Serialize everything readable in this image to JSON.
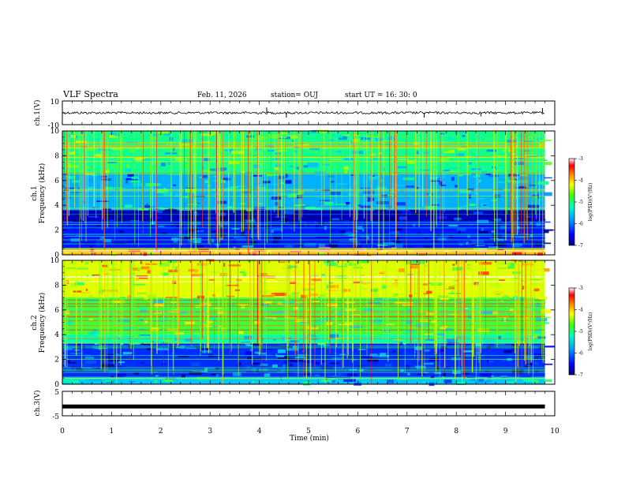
{
  "header": {
    "title": "VLF Spectra",
    "date": "Feb. 11, 2026",
    "station": "station= OUJ",
    "start": "start  UT  =   16: 30: 0"
  },
  "colors": {
    "spectrogram_scale": [
      "#000080",
      "#0000ff",
      "#0080ff",
      "#00c8ff",
      "#00ff80",
      "#aaff00",
      "#ffff00",
      "#ff6000",
      "#ff0000",
      "#ffffff"
    ],
    "trace": "#000000",
    "frame": "#000000"
  },
  "chart_data": [
    {
      "type": "line",
      "panel": "ch1-waveform",
      "ylabel": "ch.1(V)",
      "yticklabels": [
        "10",
        "-10"
      ],
      "ylim": [
        -10,
        10
      ],
      "xlim": [
        0,
        10
      ],
      "baseline": 0,
      "spikes": [
        {
          "x": 4.15,
          "y": 4.5
        },
        {
          "x": 4.55,
          "y": -4
        },
        {
          "x": 7.35,
          "y": -4
        },
        {
          "x": 8.5,
          "y": -3
        },
        {
          "x": 9.75,
          "y": 4
        }
      ]
    },
    {
      "type": "heatmap",
      "panel": "ch1-spectrogram",
      "ylabel": "ch.1\nFrequency  (kHz)",
      "yticks": [
        0,
        2,
        4,
        6,
        8,
        10
      ],
      "ylim": [
        0,
        10
      ],
      "xlim": [
        0,
        9.8
      ],
      "colorbar": {
        "label": "log(PSD)(V²/Hz)",
        "ticks": [
          -3,
          -4,
          -5,
          -6,
          -7
        ],
        "range": [
          -7,
          -3
        ]
      },
      "bands": [
        {
          "f": [
            0,
            0.5
          ],
          "logpsd": -3.8
        },
        {
          "f": [
            0.5,
            2.7
          ],
          "logpsd": -6.4
        },
        {
          "f": [
            2.7,
            3.6
          ],
          "logpsd": -6.8
        },
        {
          "f": [
            3.6,
            6.5
          ],
          "logpsd": -5.7
        },
        {
          "f": [
            6.5,
            10
          ],
          "logpsd": -5.1
        }
      ]
    },
    {
      "type": "heatmap",
      "panel": "ch2-spectrogram",
      "ylabel": "ch.2\nFrequency  (kHz)",
      "yticks": [
        0,
        2,
        4,
        6,
        8,
        10
      ],
      "ylim": [
        0,
        10
      ],
      "xlim": [
        0,
        9.8
      ],
      "colorbar": {
        "label": "log(PSD)(V²/Hz)",
        "ticks": [
          -3,
          -4,
          -5,
          -6,
          -7
        ],
        "range": [
          -7,
          -3
        ]
      },
      "bands": [
        {
          "f": [
            0,
            0.6
          ],
          "logpsd": -5.6
        },
        {
          "f": [
            0.6,
            3.3
          ],
          "logpsd": -6.3
        },
        {
          "f": [
            3.3,
            4.0
          ],
          "logpsd": -5.2
        },
        {
          "f": [
            4.0,
            7.0
          ],
          "logpsd": -4.8
        },
        {
          "f": [
            7.0,
            10
          ],
          "logpsd": -4.2
        }
      ]
    },
    {
      "type": "line",
      "panel": "ch3-waveform",
      "ylabel": "ch.3(V)",
      "yticklabels": [
        "5",
        "-5"
      ],
      "ylim": [
        -5,
        5
      ],
      "xlim": [
        0,
        10
      ],
      "baseline": -1.2
    }
  ],
  "xaxis": {
    "label": "Time  (min)",
    "ticks": [
      "0",
      "1",
      "2",
      "3",
      "4",
      "5",
      "6",
      "7",
      "8",
      "9",
      "10"
    ],
    "range": [
      0,
      10
    ]
  }
}
